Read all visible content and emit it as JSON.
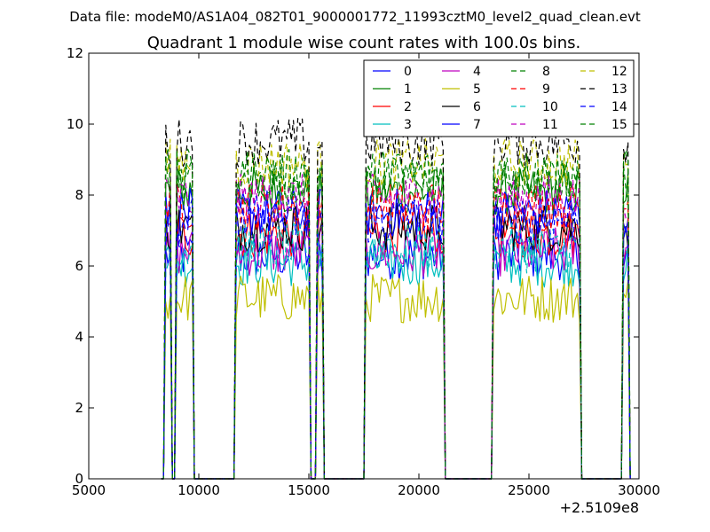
{
  "suptitle": "Data file: modeM0/AS1A04_082T01_9000001772_11993cztM0_level2_quad_clean.evt",
  "chart_data": {
    "type": "line",
    "title": "Quadrant 1 module wise count rates with 100.0s bins.",
    "xlabel": "",
    "ylabel": "",
    "x_offset_text": "+2.5109e8",
    "xlim": [
      5000,
      30000
    ],
    "ylim": [
      0,
      12
    ],
    "xticks": [
      5000,
      10000,
      15000,
      20000,
      25000,
      30000
    ],
    "yticks": [
      0,
      2,
      4,
      6,
      8,
      10,
      12
    ],
    "grid": false,
    "legend": {
      "placement": "top-right",
      "columns": 4
    },
    "segments": [
      {
        "start": 8500,
        "end": 8700
      },
      {
        "start": 9000,
        "end": 9700
      },
      {
        "start": 11700,
        "end": 15000
      },
      {
        "start": 15400,
        "end": 15600
      },
      {
        "start": 17600,
        "end": 21100
      },
      {
        "start": 23400,
        "end": 27300
      },
      {
        "start": 29300,
        "end": 29500
      }
    ],
    "series": [
      {
        "name": "0",
        "color": "#0000ff",
        "dash": "solid",
        "level": 6.3
      },
      {
        "name": "1",
        "color": "#008000",
        "dash": "solid",
        "level": 8.1
      },
      {
        "name": "2",
        "color": "#ff0000",
        "dash": "solid",
        "level": 6.9
      },
      {
        "name": "3",
        "color": "#00bfbf",
        "dash": "solid",
        "level": 6.1
      },
      {
        "name": "4",
        "color": "#bf00bf",
        "dash": "solid",
        "level": 6.4
      },
      {
        "name": "5",
        "color": "#bfbf00",
        "dash": "solid",
        "level": 5.1
      },
      {
        "name": "6",
        "color": "#000000",
        "dash": "solid",
        "level": 7.1
      },
      {
        "name": "7",
        "color": "#0000ff",
        "dash": "solid",
        "level": 7.5
      },
      {
        "name": "8",
        "color": "#008000",
        "dash": "dashed",
        "level": 8.4
      },
      {
        "name": "9",
        "color": "#ff0000",
        "dash": "dashed",
        "level": 7.7
      },
      {
        "name": "10",
        "color": "#00bfbf",
        "dash": "dashed",
        "level": 6.5
      },
      {
        "name": "11",
        "color": "#bf00bf",
        "dash": "dashed",
        "level": 7.9
      },
      {
        "name": "12",
        "color": "#bfbf00",
        "dash": "dashed",
        "level": 8.9
      },
      {
        "name": "13",
        "color": "#000000",
        "dash": "dashed",
        "level": 9.5
      },
      {
        "name": "14",
        "color": "#0000ff",
        "dash": "dashed",
        "level": 7.3
      },
      {
        "name": "15",
        "color": "#008000",
        "dash": "dashed",
        "level": 8.6
      }
    ]
  }
}
